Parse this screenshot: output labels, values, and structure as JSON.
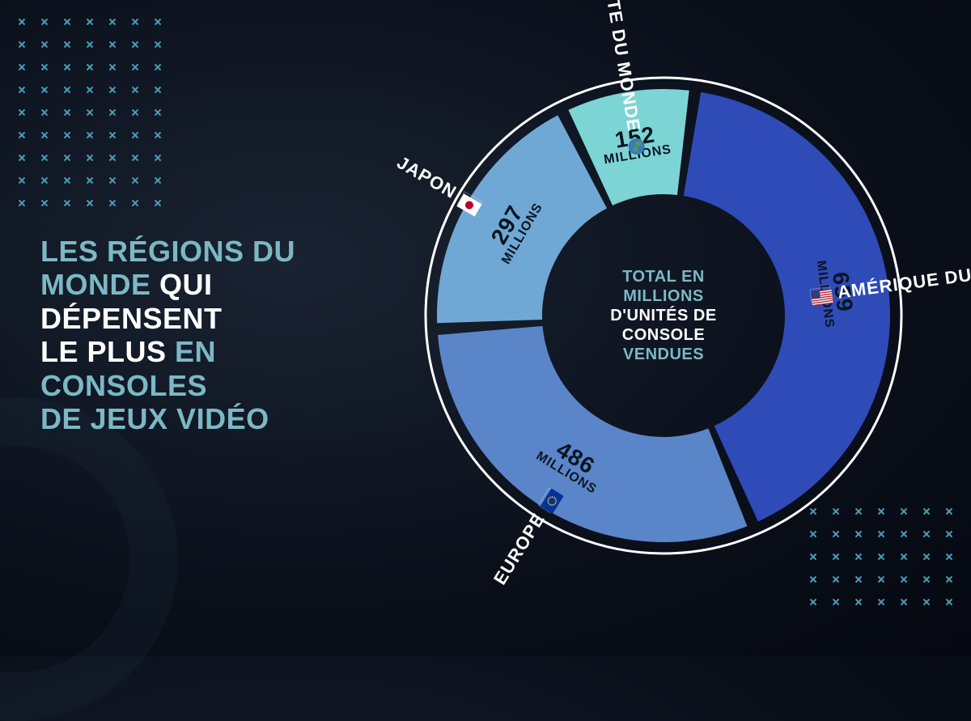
{
  "background": {
    "colors": {
      "center": "#1a2332",
      "mid": "#0a0f1a",
      "edge": "#050810"
    },
    "cross_color": "#4a9eb8"
  },
  "title": {
    "line1": "LES RÉGIONS DU",
    "line2": "MONDE",
    "line2_rest": " QUI DÉPENSENT",
    "line3": "LE PLUS",
    "line3_rest": " EN CONSOLES",
    "line4": "DE JEUX VIDÉO",
    "color_accent": "#7bb8c4",
    "color_white": "#ffffff"
  },
  "chart": {
    "type": "donut",
    "outer_radius": 280,
    "inner_radius": 150,
    "ring_stroke_color": "#ffffff",
    "ring_stroke_width": 3,
    "gap_color": "#0a0f1a",
    "gap_deg": 3,
    "center_text": {
      "part1": "TOTAL EN MILLIONS",
      "part2": "D'UNITÉS DE",
      "part3": "CONSOLE ",
      "part4": "VENDUES",
      "color_white": "#ffffff",
      "color_accent": "#7bb8c4"
    },
    "unit_label": "MILLIONS",
    "slices": [
      {
        "region": "AMÉRIQUE DU NORD",
        "value": 659,
        "color": "#2e4bb8",
        "flag": "us"
      },
      {
        "region": "EUROPE",
        "value": 486,
        "color": "#5a85c9",
        "flag": "eu"
      },
      {
        "region": "JAPON",
        "value": 297,
        "color": "#6fa8d4",
        "flag": "jp"
      },
      {
        "region": "RESTE DU MONDE",
        "value": 152,
        "color": "#7dd4d4",
        "flag": "globe"
      }
    ]
  }
}
